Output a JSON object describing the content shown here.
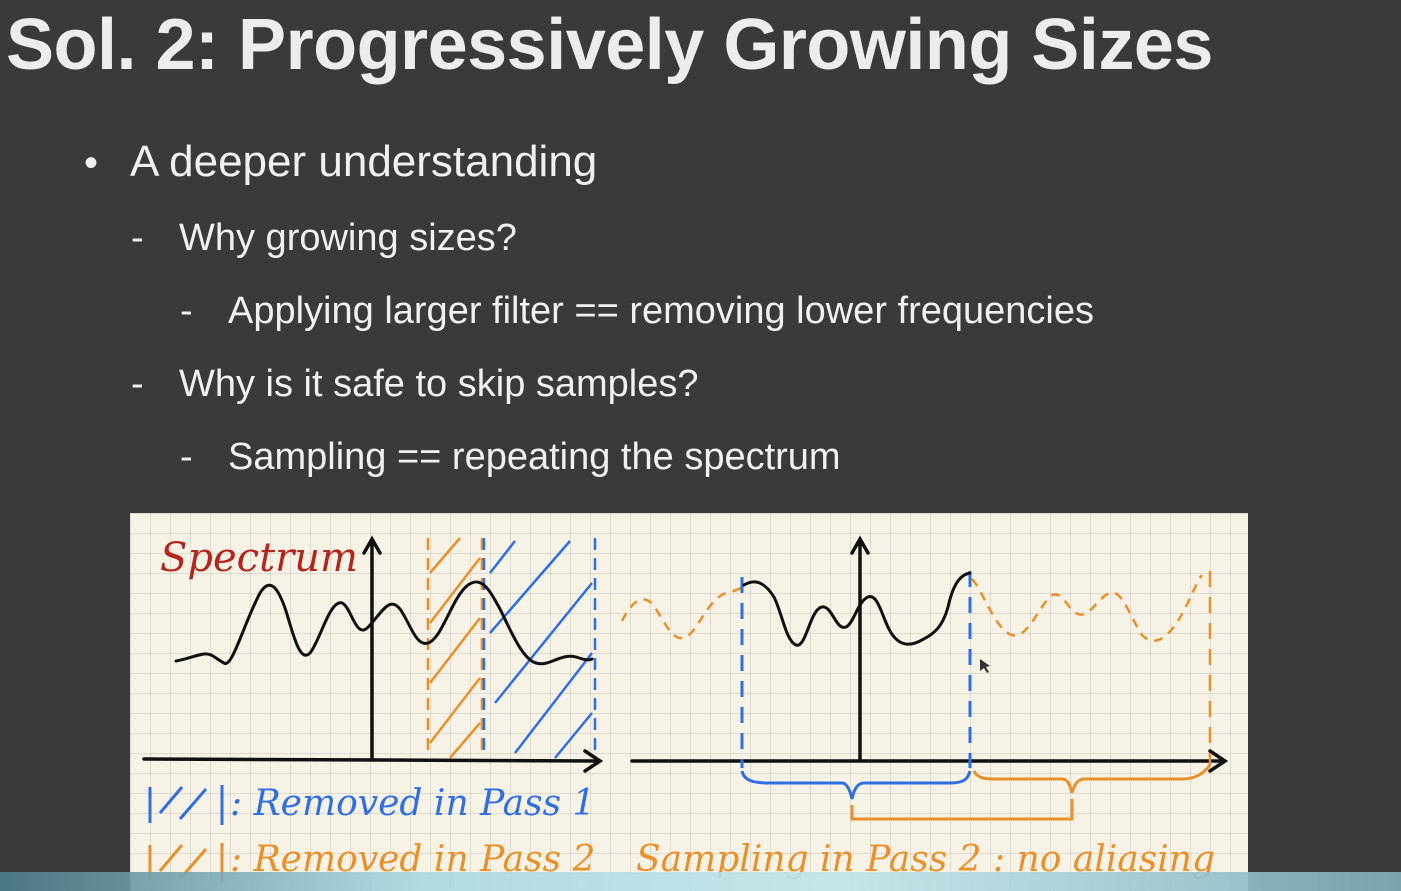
{
  "slide": {
    "title": "Sol. 2: Progressively Growing Sizes",
    "bullets": {
      "l1": {
        "marker": "•",
        "text": "A deeper understanding"
      },
      "q1": {
        "marker": "-",
        "text": "Why growing sizes?"
      },
      "a1": {
        "marker": "-",
        "text": "Applying larger filter == removing lower frequencies"
      },
      "q2": {
        "marker": "-",
        "text": "Why is it safe to skip samples?"
      },
      "a2": {
        "marker": "-",
        "text": "Sampling == repeating the spectrum"
      }
    }
  },
  "figure": {
    "spectrum_label": "Spectrum",
    "legend_pass1": ": Removed in Pass 1",
    "legend_pass2": ": Removed in Pass 2",
    "sampling_caption": "Sampling in Pass 2 : no aliasing",
    "colors": {
      "ink": "#111111",
      "pass1_blue": "#2f6fe0",
      "pass2_orange": "#e8902a",
      "label_red": "#b3261e",
      "paper": "#f6f2e6"
    }
  }
}
